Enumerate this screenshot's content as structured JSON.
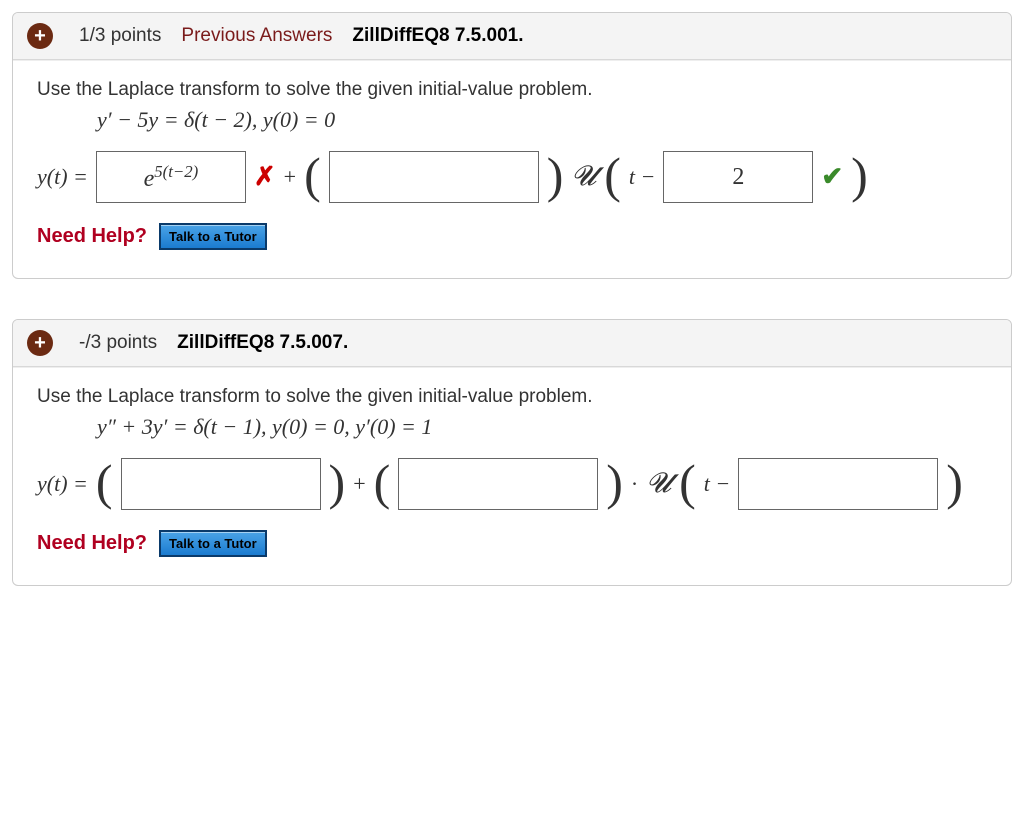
{
  "questions": [
    {
      "plus_color": "#6b2a12",
      "points": "1/3 points",
      "prev_label": "Previous Answers",
      "prev_color": "#7a1b1b",
      "title": "ZillDiffEQ8 7.5.001.",
      "prompt": "Use the Laplace transform to solve the given initial-value problem.",
      "equation": "y′ − 5y = δ(t − 2),  y(0) = 0",
      "answer": {
        "lhs": "y(t) = ",
        "box1_value": "e^{5(t−2)}",
        "box1_status": "wrong",
        "plus": "+",
        "box2_value": "",
        "u_label": "𝓤",
        "t_minus": "t −",
        "box3_value": "2",
        "box3_status": "correct"
      },
      "need_help": "Need Help?",
      "tutor": "Talk to a Tutor"
    },
    {
      "plus_color": "#6b2a12",
      "points": "-/3 points",
      "title": "ZillDiffEQ8 7.5.007.",
      "prompt": "Use the Laplace transform to solve the given initial-value problem.",
      "equation": "y″ + 3y′ = δ(t − 1),   y(0) = 0,  y′(0) = 1",
      "answer": {
        "lhs": "y(t) = ",
        "box1_value": "",
        "plus": "+",
        "box2_value": "",
        "dot": "·",
        "u_label": "𝓤",
        "t_minus": "t −",
        "box3_value": ""
      },
      "need_help": "Need Help?",
      "tutor": "Talk to a Tutor"
    }
  ],
  "colors": {
    "header_bg": "#f4f4f4",
    "border": "#cccccc",
    "wrong": "#cc0000",
    "correct": "#3a8a2a",
    "need_help": "#b00020",
    "tutor_grad_top": "#4aa3e6",
    "tutor_grad_bottom": "#1b7bd0",
    "tutor_border": "#0a3a6a"
  },
  "fonts": {
    "body": "Verdana",
    "math": "Georgia",
    "script": "Brush Script MT"
  }
}
